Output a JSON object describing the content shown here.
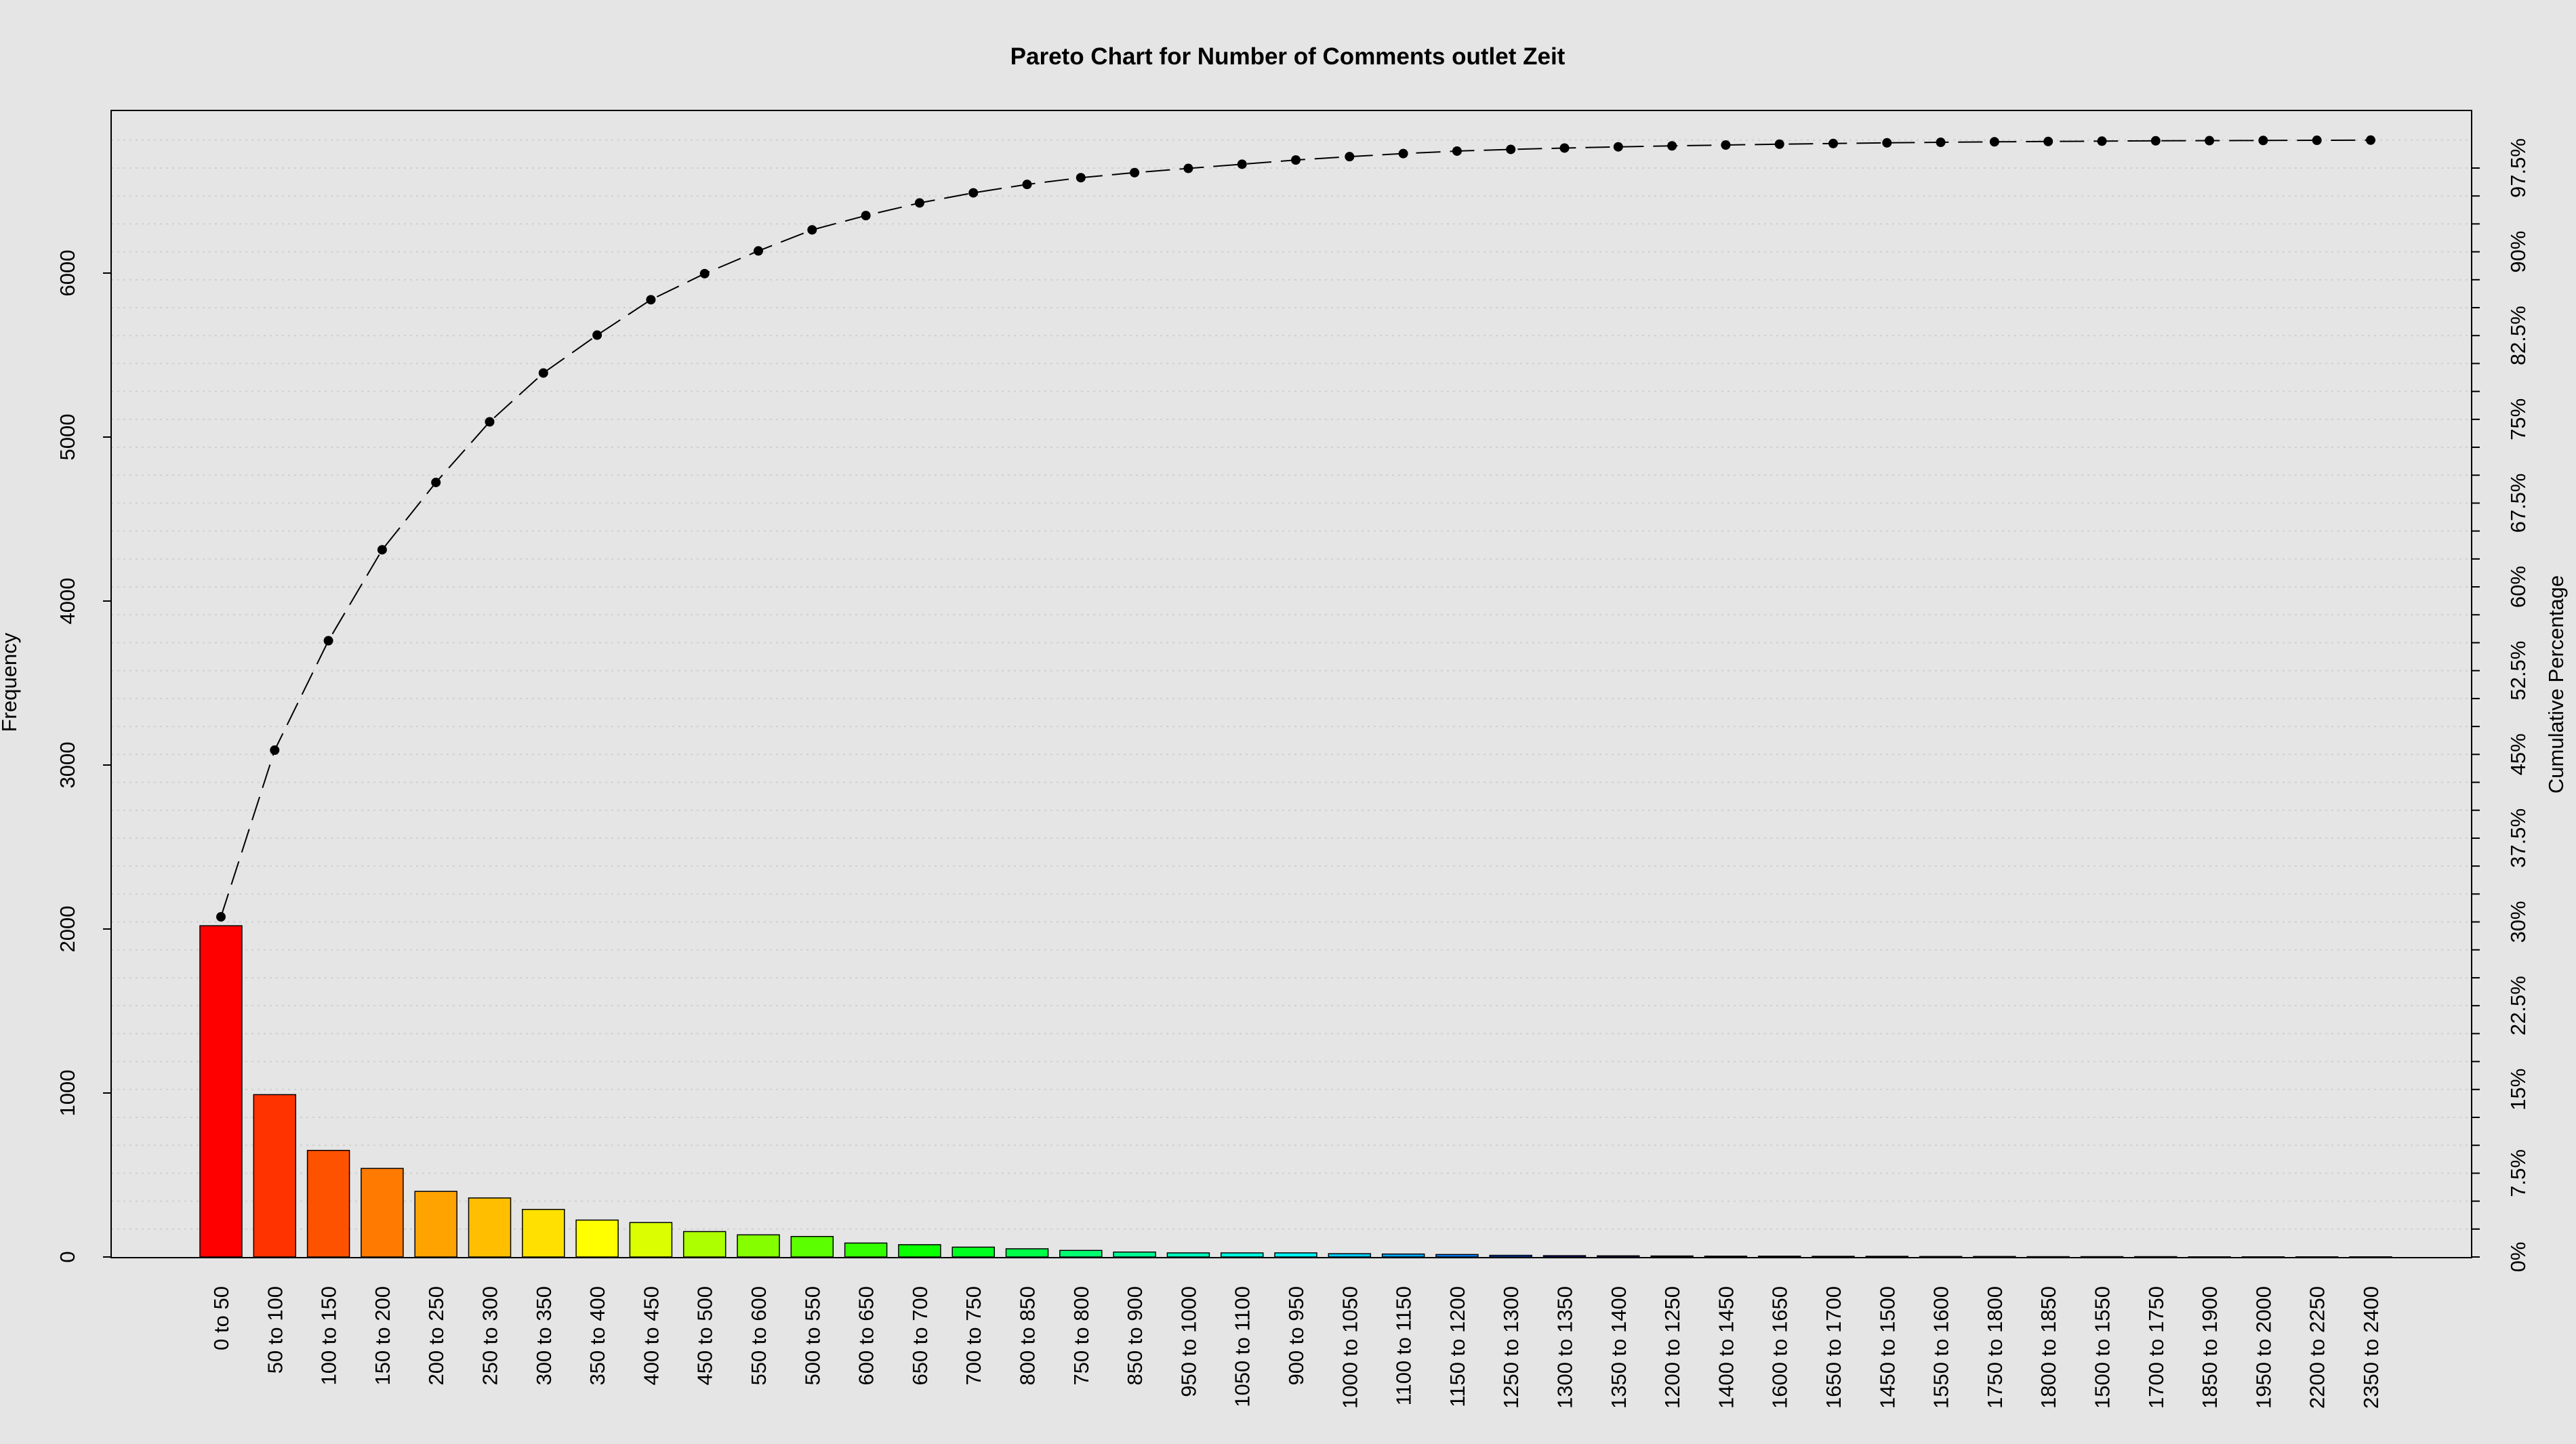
{
  "chart_data": {
    "type": "bar",
    "title": "Pareto Chart for Number of Comments outlet Zeit",
    "ylabel": "Frequency",
    "y2label": "Cumulative Percentage",
    "xlabel": "",
    "ylim": [
      0,
      7000
    ],
    "y_ticks": [
      "0",
      "1000",
      "2000",
      "3000",
      "4000",
      "5000",
      "6000"
    ],
    "y2_ticks": [
      "0%",
      "7.5%",
      "15%",
      "22.5%",
      "30%",
      "37.5%",
      "45%",
      "52.5%",
      "60%",
      "67.5%",
      "75%",
      "82.5%",
      "90%",
      "97.5%"
    ],
    "categories": [
      "0 to 50",
      "50 to 100",
      "100 to 150",
      "150 to 200",
      "200 to 250",
      "250 to 300",
      "300 to 350",
      "350 to 400",
      "400 to 450",
      "450 to 500",
      "550 to 600",
      "500 to 550",
      "600 to 650",
      "650 to 700",
      "700 to 750",
      "800 to 850",
      "750 to 800",
      "850 to 900",
      "950 to 1000",
      "1050 to 1100",
      "900 to 950",
      "1000 to 1050",
      "1100 to 1150",
      "1150 to 1200",
      "1250 to 1300",
      "1300 to 1350",
      "1350 to 1400",
      "1200 to 1250",
      "1400 to 1450",
      "1600 to 1650",
      "1650 to 1700",
      "1450 to 1500",
      "1550 to 1600",
      "1750 to 1800",
      "1800 to 1850",
      "1500 to 1550",
      "1700 to 1750",
      "1850 to 1900",
      "1950 to 2000",
      "2200 to 2250",
      "2350 to 2400"
    ],
    "values": [
      2020,
      990,
      650,
      540,
      400,
      360,
      290,
      225,
      210,
      155,
      135,
      125,
      85,
      75,
      60,
      50,
      40,
      30,
      25,
      25,
      25,
      20,
      18,
      15,
      10,
      8,
      7,
      6,
      5,
      5,
      4,
      4,
      3,
      3,
      2,
      2,
      2,
      1,
      1,
      1,
      1
    ],
    "cumulative_marker": "dashed line with points",
    "grid": "horizontal dotted",
    "colors": [
      "#ff0000",
      "#ff3300",
      "#ff5200",
      "#ff7a00",
      "#ffa300",
      "#ffbf00",
      "#ffe000",
      "#ffff00",
      "#dbff00",
      "#adff00",
      "#85ff00",
      "#5cff00",
      "#33ff00",
      "#0aff00",
      "#00ff1f",
      "#00ff47",
      "#00ff70",
      "#00ff94",
      "#00ffbd",
      "#00ffe0",
      "#00f5ff",
      "#00ccff",
      "#00a8ff",
      "#0080ff",
      "#0057ff",
      "#002eff",
      "#000aff",
      "#1f00ff",
      "#4700ff",
      "#7000ff",
      "#9400ff",
      "#bd00ff",
      "#e000ff",
      "#ff00f5",
      "#ff00cc",
      "#ff00a8",
      "#ff0080",
      "#ff0057",
      "#ff002e",
      "#ff000a",
      "#ff0000"
    ]
  }
}
